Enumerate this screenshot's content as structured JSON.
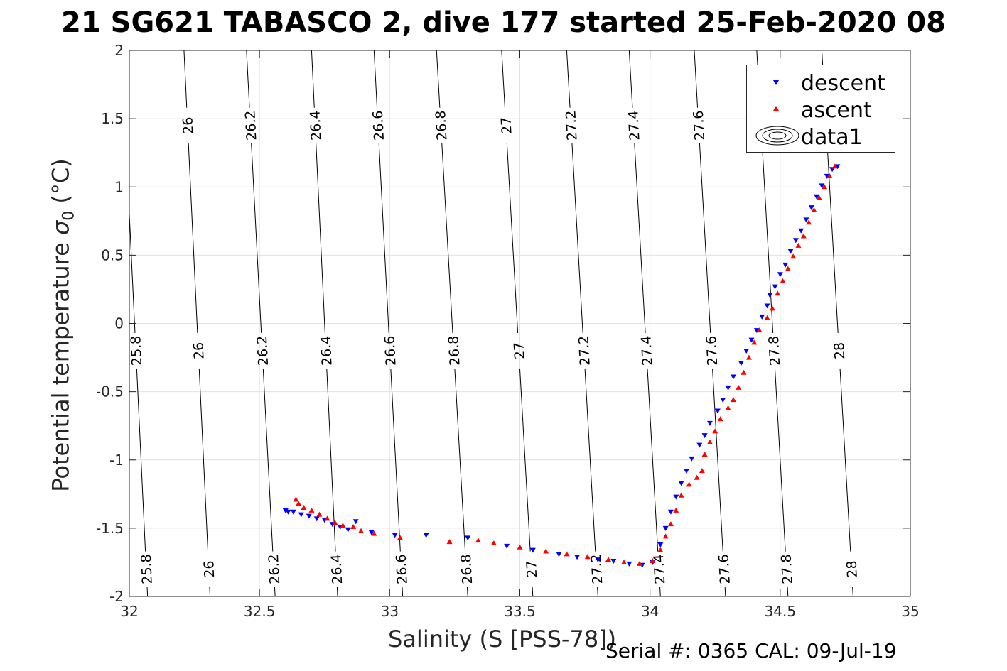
{
  "title": "21 SG621 TABASCO 2, dive 177 started 25-Feb-2020 08",
  "footer": "Serial #: 0365  CAL: 09-Jul-19",
  "chart_data": {
    "type": "scatter",
    "xlabel": "Salinity (S [PSS-78])",
    "ylabel_main": "Potential temperature ",
    "ylabel_sym": "σ",
    "ylabel_sub": "0",
    "ylabel_unit": " (°C)",
    "xlim": [
      32,
      35
    ],
    "ylim": [
      -2,
      2
    ],
    "x_ticks": [
      "32",
      "32.5",
      "33",
      "33.5",
      "34",
      "34.5",
      "35"
    ],
    "y_ticks": [
      "-2",
      "-1.5",
      "-1",
      "-0.5",
      "0",
      "0.5",
      "1",
      "1.5",
      "2"
    ],
    "grid": true,
    "legend_position": "top-right",
    "contours": {
      "levels": [
        "25.8",
        "26",
        "26.2",
        "26.4",
        "26.6",
        "26.8",
        "27",
        "27.2",
        "27.4",
        "27.6",
        "27.8",
        "28"
      ],
      "bottom_x": [
        32.07,
        32.31,
        32.56,
        32.8,
        33.05,
        33.3,
        33.55,
        33.8,
        34.04,
        34.29,
        34.53,
        34.78
      ],
      "top_x": [
        31.97,
        32.21,
        32.45,
        32.7,
        32.94,
        33.18,
        33.43,
        33.68,
        33.92,
        34.17,
        34.41,
        34.66
      ]
    },
    "series": [
      {
        "name": "descent",
        "color": "#0000ff",
        "marker": "triangle-down",
        "points": [
          [
            32.6,
            -1.37
          ],
          [
            32.61,
            -1.38
          ],
          [
            32.63,
            -1.38
          ],
          [
            32.66,
            -1.4
          ],
          [
            32.69,
            -1.41
          ],
          [
            32.72,
            -1.43
          ],
          [
            32.75,
            -1.44
          ],
          [
            32.78,
            -1.47
          ],
          [
            32.81,
            -1.49
          ],
          [
            32.84,
            -1.51
          ],
          [
            32.87,
            -1.45
          ],
          [
            32.93,
            -1.53
          ],
          [
            33.02,
            -1.55
          ],
          [
            33.14,
            -1.55
          ],
          [
            33.3,
            -1.57
          ],
          [
            33.45,
            -1.63
          ],
          [
            33.55,
            -1.66
          ],
          [
            33.65,
            -1.69
          ],
          [
            33.72,
            -1.71
          ],
          [
            33.8,
            -1.73
          ],
          [
            33.86,
            -1.74
          ],
          [
            33.92,
            -1.76
          ],
          [
            33.97,
            -1.77
          ],
          [
            34.01,
            -1.75
          ],
          [
            34.04,
            -1.62
          ],
          [
            34.06,
            -1.5
          ],
          [
            34.08,
            -1.38
          ],
          [
            34.1,
            -1.27
          ],
          [
            34.12,
            -1.17
          ],
          [
            34.14,
            -1.08
          ],
          [
            34.16,
            -0.99
          ],
          [
            34.19,
            -0.89
          ],
          [
            34.21,
            -0.82
          ],
          [
            34.23,
            -0.73
          ],
          [
            34.26,
            -0.64
          ],
          [
            34.28,
            -0.56
          ],
          [
            34.3,
            -0.47
          ],
          [
            34.32,
            -0.39
          ],
          [
            34.35,
            -0.29
          ],
          [
            34.37,
            -0.2
          ],
          [
            34.39,
            -0.12
          ],
          [
            34.41,
            -0.05
          ],
          [
            34.43,
            0.05
          ],
          [
            34.45,
            0.13
          ],
          [
            34.46,
            0.21
          ],
          [
            34.48,
            0.27
          ],
          [
            34.5,
            0.36
          ],
          [
            34.52,
            0.43
          ],
          [
            34.54,
            0.53
          ],
          [
            34.56,
            0.61
          ],
          [
            34.58,
            0.68
          ],
          [
            34.6,
            0.76
          ],
          [
            34.62,
            0.85
          ],
          [
            34.64,
            0.93
          ],
          [
            34.66,
            1.01
          ],
          [
            34.68,
            1.08
          ],
          [
            34.7,
            1.13
          ],
          [
            34.72,
            1.15
          ]
        ]
      },
      {
        "name": "ascent",
        "color": "#ff0000",
        "marker": "triangle-up",
        "points": [
          [
            32.64,
            -1.29
          ],
          [
            32.65,
            -1.32
          ],
          [
            32.67,
            -1.35
          ],
          [
            32.7,
            -1.37
          ],
          [
            32.73,
            -1.4
          ],
          [
            32.76,
            -1.43
          ],
          [
            32.79,
            -1.46
          ],
          [
            32.82,
            -1.48
          ],
          [
            32.86,
            -1.49
          ],
          [
            32.89,
            -1.52
          ],
          [
            32.94,
            -1.54
          ],
          [
            33.04,
            -1.57
          ],
          [
            33.23,
            -1.6
          ],
          [
            33.34,
            -1.59
          ],
          [
            33.4,
            -1.61
          ],
          [
            33.5,
            -1.64
          ],
          [
            33.6,
            -1.67
          ],
          [
            33.68,
            -1.69
          ],
          [
            33.76,
            -1.71
          ],
          [
            33.84,
            -1.73
          ],
          [
            33.9,
            -1.75
          ],
          [
            33.96,
            -1.76
          ],
          [
            34.01,
            -1.74
          ],
          [
            34.04,
            -1.66
          ],
          [
            34.06,
            -1.56
          ],
          [
            34.08,
            -1.47
          ],
          [
            34.1,
            -1.37
          ],
          [
            34.12,
            -1.26
          ],
          [
            34.15,
            -1.18
          ],
          [
            34.18,
            -1.13
          ],
          [
            34.2,
            -1.08
          ],
          [
            34.21,
            -0.96
          ],
          [
            34.23,
            -0.87
          ],
          [
            34.25,
            -0.79
          ],
          [
            34.27,
            -0.7
          ],
          [
            34.3,
            -0.62
          ],
          [
            34.32,
            -0.56
          ],
          [
            34.34,
            -0.47
          ],
          [
            34.36,
            -0.36
          ],
          [
            34.38,
            -0.25
          ],
          [
            34.4,
            -0.14
          ],
          [
            34.42,
            -0.05
          ],
          [
            34.45,
            0.04
          ],
          [
            34.47,
            0.11
          ],
          [
            34.49,
            0.22
          ],
          [
            34.51,
            0.31
          ],
          [
            34.53,
            0.4
          ],
          [
            34.55,
            0.49
          ],
          [
            34.57,
            0.57
          ],
          [
            34.59,
            0.64
          ],
          [
            34.61,
            0.74
          ],
          [
            34.63,
            0.83
          ],
          [
            34.65,
            0.92
          ],
          [
            34.67,
            1.0
          ],
          [
            34.69,
            1.08
          ],
          [
            34.71,
            1.15
          ]
        ]
      }
    ],
    "legend": [
      {
        "label": "descent",
        "marker": "triangle-down",
        "color": "#0000ff"
      },
      {
        "label": "ascent",
        "marker": "triangle-up",
        "color": "#ff0000"
      },
      {
        "label": "data1",
        "marker": "contour",
        "color": "#000000"
      }
    ]
  }
}
